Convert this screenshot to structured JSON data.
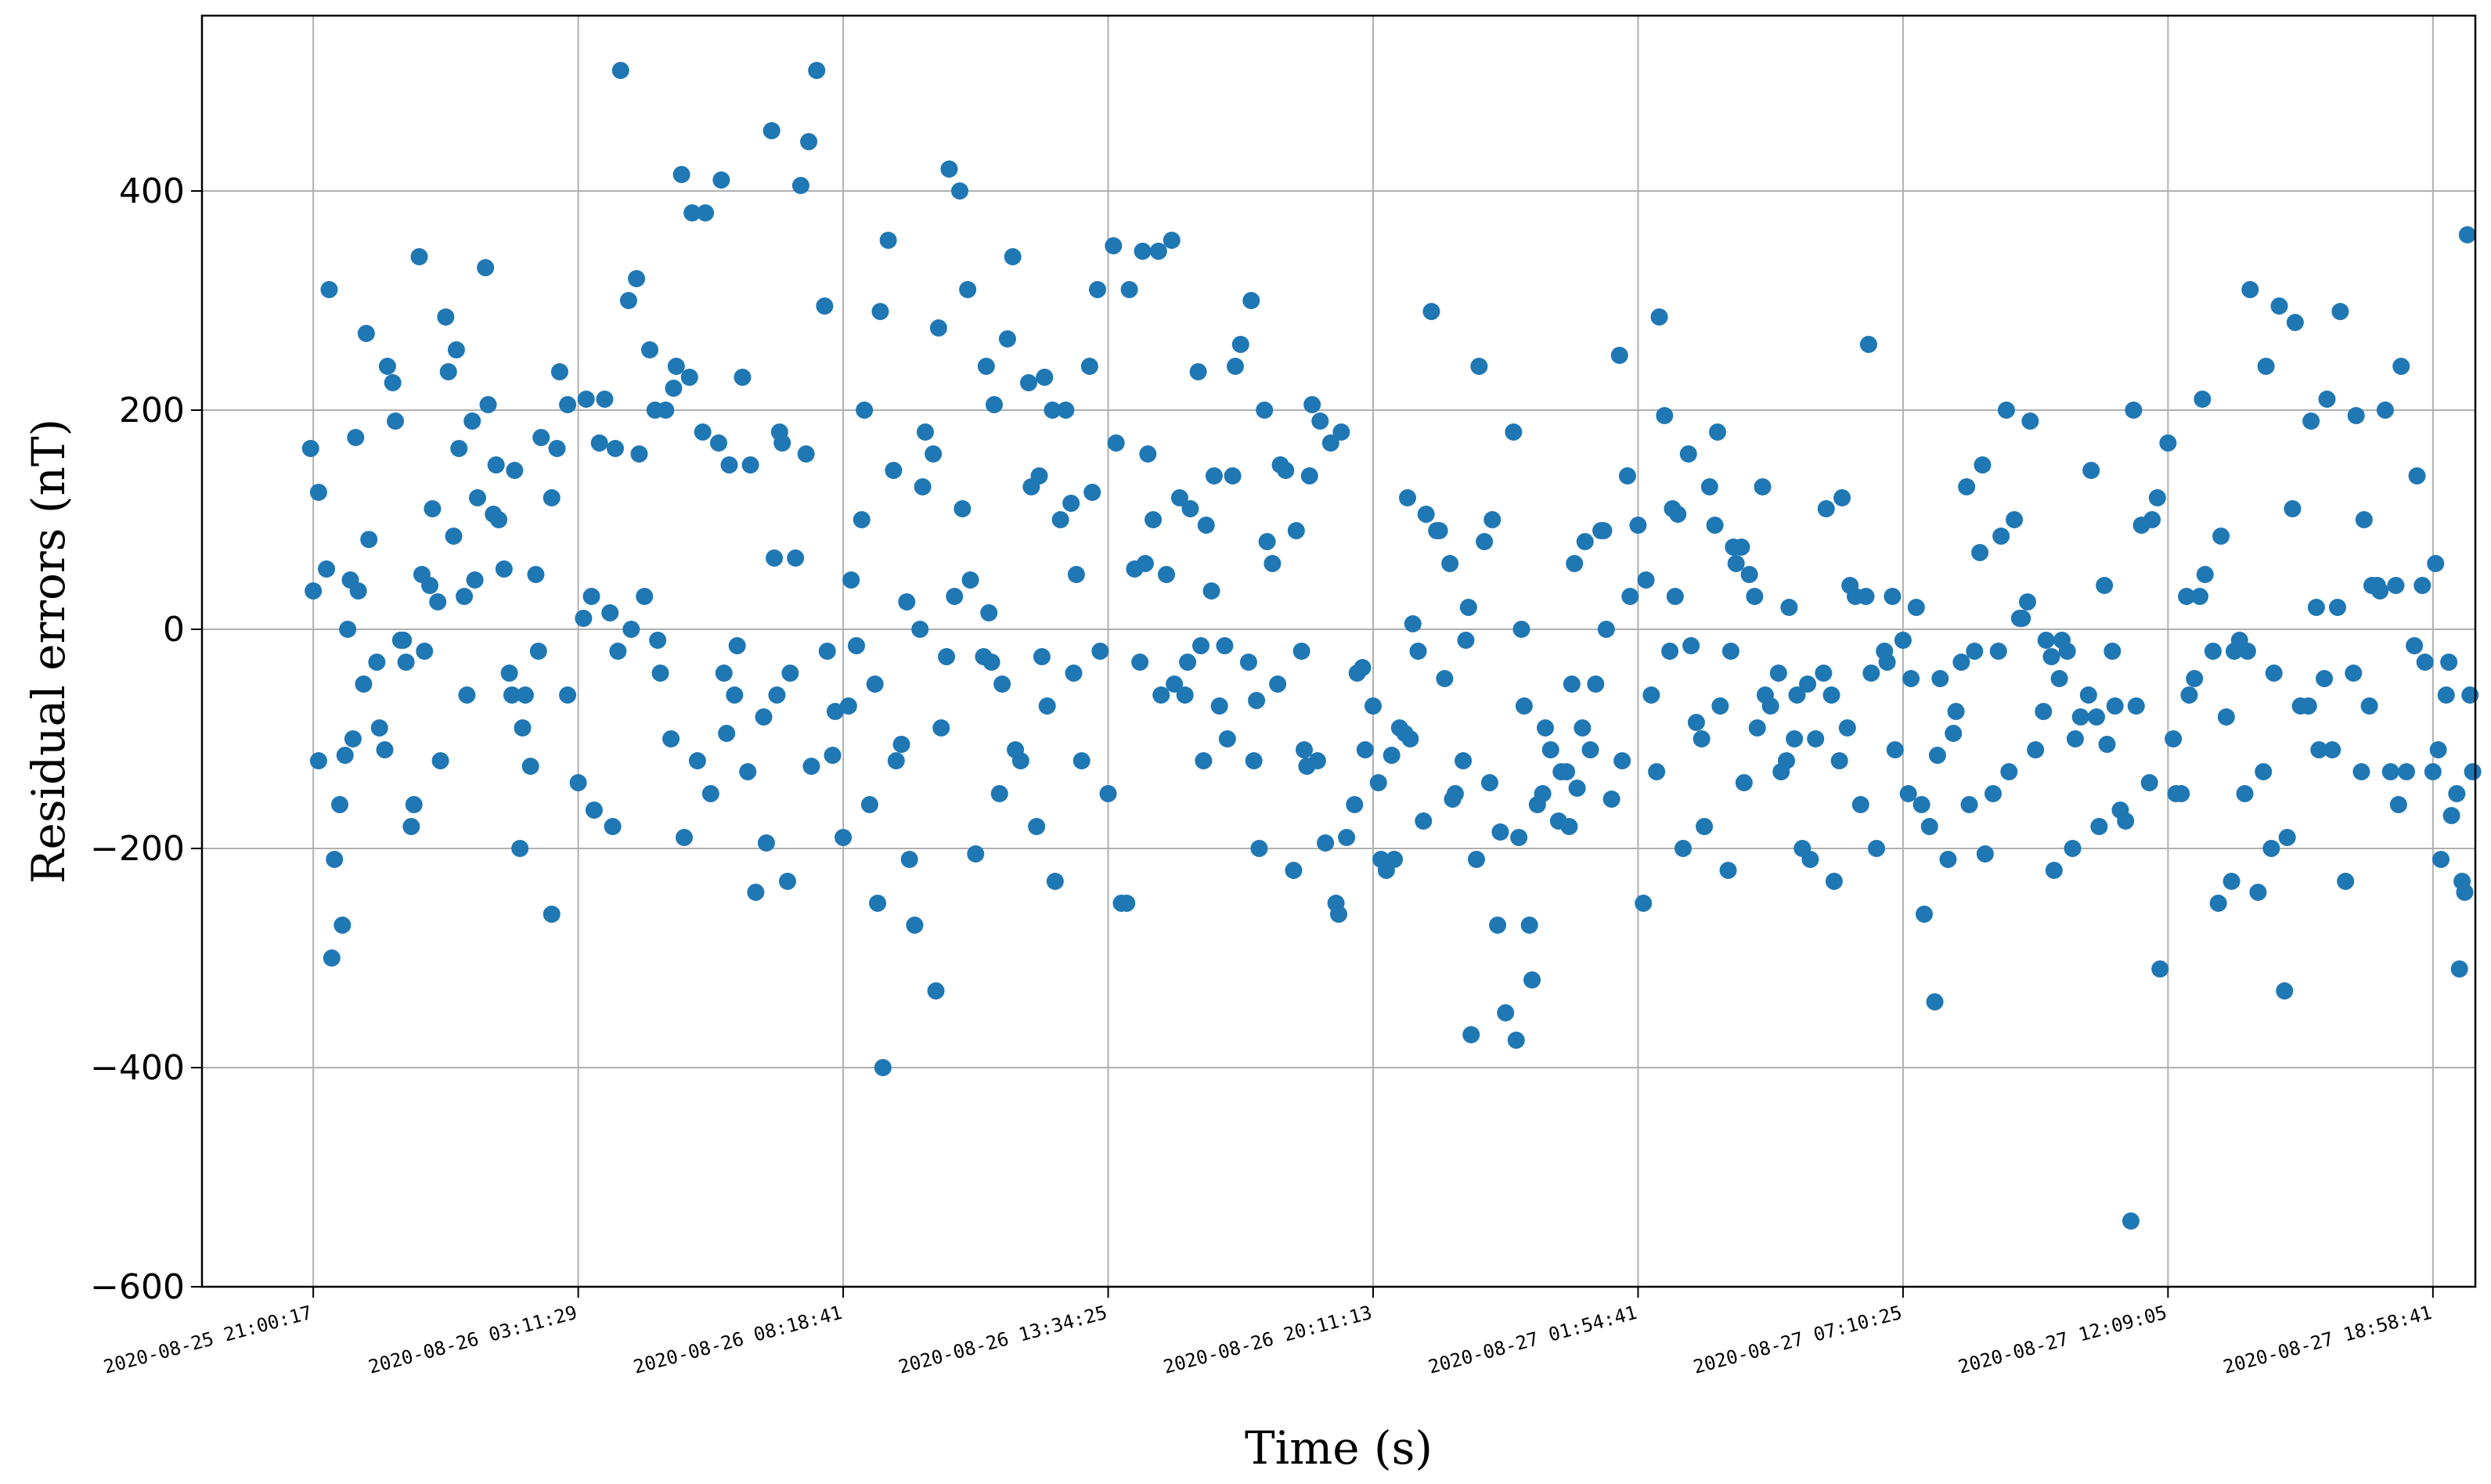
{
  "chart_data": {
    "type": "scatter",
    "title": "",
    "xlabel": "Time (s)",
    "ylabel": "Residual errors (nT)",
    "ylim": [
      -600,
      560
    ],
    "yticks": [
      -600,
      -400,
      -200,
      0,
      200,
      400
    ],
    "xticks": [
      "2020-08-25 21:00:17",
      "2020-08-26 03:11:29",
      "2020-08-26 08:18:41",
      "2020-08-26 13:34:25",
      "2020-08-26 20:11:13",
      "2020-08-27 01:54:41",
      "2020-08-27 07:10:25",
      "2020-08-27 12:09:05",
      "2020-08-27 18:58:41"
    ],
    "xlim_tick_index": [
      -0.42,
      8.16
    ],
    "grid": true,
    "legend": "none",
    "marker_color": "#1f77b4",
    "points_x": [
      -0.01,
      0.02,
      0.05,
      0.08,
      0.11,
      0.14,
      0.17,
      0.21,
      0.24,
      0.28,
      0.31,
      0.34,
      0.38,
      0.41,
      0.44,
      0.48,
      0.51,
      0.54,
      0.58,
      0.62,
      0.65,
      0.68,
      0.72,
      0.75,
      0.78,
      0.82,
      0.86,
      0.9,
      0.93,
      0.96,
      0.02,
      0.06,
      0.1,
      0.13,
      0.16,
      0.2,
      0.25,
      0.3,
      0.35,
      0.4,
      0.45,
      0.5,
      0.55,
      0.6,
      0.66,
      0.7,
      0.76,
      0.8,
      0.85,
      0.9,
      0.96,
      0.0,
      0.07,
      0.12,
      0.19,
      0.27,
      0.33,
      0.42,
      0.47,
      0.53,
      0.61,
      0.69,
      0.74,
      0.84,
      0.92,
      1.0,
      1.03,
      1.06,
      1.1,
      1.13,
      1.16,
      1.2,
      1.23,
      1.27,
      1.3,
      1.33,
      1.37,
      1.4,
      1.43,
      1.47,
      1.5,
      1.54,
      1.57,
      1.6,
      1.64,
      1.67,
      1.7,
      1.74,
      1.77,
      1.8,
      1.84,
      1.87,
      1.9,
      1.94,
      1.97,
      1.02,
      1.08,
      1.14,
      1.19,
      1.25,
      1.31,
      1.36,
      1.42,
      1.48,
      1.53,
      1.59,
      1.65,
      1.71,
      1.76,
      1.82,
      1.88,
      1.93,
      1.05,
      1.12,
      1.22,
      1.29,
      1.39,
      1.45,
      1.56,
      1.62,
      1.73,
      1.79,
      1.86,
      1.96,
      2.0,
      2.03,
      2.07,
      2.1,
      2.13,
      2.17,
      2.2,
      2.24,
      2.27,
      2.3,
      2.34,
      2.37,
      2.4,
      2.44,
      2.47,
      2.5,
      2.54,
      2.57,
      2.6,
      2.64,
      2.67,
      2.7,
      2.74,
      2.77,
      2.8,
      2.84,
      2.87,
      2.9,
      2.94,
      2.97,
      2.02,
      2.08,
      2.14,
      2.19,
      2.25,
      2.31,
      2.36,
      2.42,
      2.48,
      2.53,
      2.59,
      2.65,
      2.71,
      2.76,
      2.82,
      2.88,
      2.93,
      2.05,
      2.12,
      2.22,
      2.29,
      2.39,
      2.45,
      2.56,
      2.62,
      2.73,
      2.79,
      2.86,
      2.96,
      3.0,
      3.03,
      3.07,
      3.1,
      3.13,
      3.17,
      3.2,
      3.24,
      3.27,
      3.3,
      3.34,
      3.37,
      3.4,
      3.44,
      3.47,
      3.5,
      3.54,
      3.57,
      3.6,
      3.64,
      3.67,
      3.7,
      3.74,
      3.77,
      3.8,
      3.84,
      3.87,
      3.9,
      3.94,
      3.97,
      3.02,
      3.08,
      3.14,
      3.19,
      3.25,
      3.31,
      3.36,
      3.42,
      3.48,
      3.53,
      3.59,
      3.65,
      3.71,
      3.76,
      3.82,
      3.88,
      3.93,
      3.05,
      3.12,
      3.22,
      3.29,
      3.39,
      3.45,
      3.56,
      3.62,
      3.73,
      3.79,
      3.86,
      3.96,
      4.0,
      4.03,
      4.07,
      4.1,
      4.13,
      4.17,
      4.2,
      4.24,
      4.27,
      4.3,
      4.34,
      4.37,
      4.4,
      4.44,
      4.47,
      4.5,
      4.54,
      4.57,
      4.6,
      4.64,
      4.67,
      4.7,
      4.74,
      4.77,
      4.8,
      4.84,
      4.87,
      4.9,
      4.94,
      4.97,
      4.02,
      4.08,
      4.14,
      4.19,
      4.25,
      4.31,
      4.36,
      4.42,
      4.48,
      4.53,
      4.59,
      4.65,
      4.71,
      4.76,
      4.82,
      4.88,
      4.93,
      4.05,
      4.12,
      4.22,
      4.29,
      4.39,
      4.45,
      4.56,
      4.62,
      4.73,
      4.79,
      4.86,
      4.96,
      5.0,
      5.03,
      5.07,
      5.1,
      5.13,
      5.17,
      5.2,
      5.24,
      5.27,
      5.3,
      5.34,
      5.37,
      5.4,
      5.44,
      5.47,
      5.5,
      5.54,
      5.57,
      5.6,
      5.64,
      5.67,
      5.7,
      5.74,
      5.77,
      5.8,
      5.84,
      5.87,
      5.9,
      5.94,
      5.97,
      5.02,
      5.08,
      5.14,
      5.19,
      5.25,
      5.31,
      5.36,
      5.42,
      5.48,
      5.53,
      5.59,
      5.65,
      5.71,
      5.76,
      5.82,
      5.88,
      5.93,
      5.05,
      5.12,
      5.22,
      5.29,
      5.39,
      5.45,
      5.56,
      5.62,
      5.73,
      5.79,
      5.86,
      5.96,
      6.0,
      6.03,
      6.07,
      6.1,
      6.13,
      6.17,
      6.2,
      6.24,
      6.27,
      6.3,
      6.34,
      6.37,
      6.4,
      6.44,
      6.47,
      6.5,
      6.54,
      6.57,
      6.6,
      6.64,
      6.67,
      6.7,
      6.74,
      6.77,
      6.8,
      6.84,
      6.87,
      6.9,
      6.94,
      6.97,
      6.02,
      6.08,
      6.14,
      6.19,
      6.25,
      6.31,
      6.36,
      6.42,
      6.48,
      6.53,
      6.59,
      6.65,
      6.71,
      6.76,
      6.82,
      6.88,
      6.93,
      6.05,
      6.12,
      6.22,
      6.29,
      6.39,
      6.45,
      6.56,
      6.62,
      6.73,
      6.79,
      6.86,
      6.96,
      7.0,
      7.03,
      7.07,
      7.1,
      7.13,
      7.17,
      7.2,
      7.24,
      7.27,
      7.3,
      7.34,
      7.37,
      7.4,
      7.44,
      7.47,
      7.5,
      7.54,
      7.57,
      7.6,
      7.64,
      7.67,
      7.7,
      7.74,
      7.77,
      7.8,
      7.84,
      7.87,
      7.9,
      7.94,
      7.97,
      7.02,
      7.08,
      7.14,
      7.19,
      7.25,
      7.31,
      7.36,
      7.42,
      7.48,
      7.53,
      7.59,
      7.65,
      7.71,
      7.76,
      7.82,
      7.88,
      7.93,
      7.05,
      7.12,
      7.22,
      7.29,
      7.39,
      7.45,
      7.56,
      7.62,
      7.73,
      7.79,
      7.86,
      7.96,
      8.0,
      8.03,
      8.06,
      8.09,
      8.12,
      8.15,
      8.02,
      8.07,
      8.11,
      8.14,
      8.01,
      8.05,
      8.1,
      8.13,
      0.15,
      0.37,
      0.57,
      0.79,
      1.15,
      1.35,
      1.55,
      1.75,
      2.15,
      2.35,
      2.55,
      2.75,
      3.15,
      3.35,
      3.55,
      3.75,
      4.15,
      4.35,
      4.55,
      4.75,
      5.15,
      5.35,
      5.55,
      5.75,
      6.15,
      6.35,
      6.55,
      6.75,
      7.15,
      7.35,
      7.55,
      7.75,
      8.04,
      8.08
    ],
    "points_y": [
      165,
      -120,
      55,
      -210,
      -270,
      45,
      35,
      82,
      -30,
      240,
      190,
      -10,
      -160,
      50,
      40,
      -120,
      235,
      255,
      -60,
      120,
      330,
      105,
      55,
      -60,
      -200,
      -125,
      175,
      120,
      235,
      -60,
      125,
      310,
      -160,
      0,
      175,
      270,
      -90,
      225,
      -30,
      340,
      110,
      285,
      165,
      190,
      205,
      100,
      145,
      -60,
      -20,
      -260,
      205,
      35,
      -300,
      -115,
      -50,
      -110,
      -10,
      -20,
      25,
      85,
      45,
      150,
      -40,
      50,
      165,
      -140,
      210,
      -165,
      210,
      -180,
      510,
      0,
      160,
      255,
      -10,
      200,
      240,
      -190,
      380,
      180,
      -150,
      410,
      150,
      -15,
      -130,
      -240,
      -80,
      65,
      170,
      -40,
      405,
      445,
      510,
      -20,
      -75,
      10,
      170,
      165,
      300,
      30,
      -40,
      220,
      230,
      380,
      170,
      -60,
      150,
      -195,
      180,
      65,
      -125,
      295,
      30,
      15,
      320,
      200,
      415,
      -120,
      -95,
      230,
      455,
      -230,
      160,
      -115,
      -190,
      45,
      100,
      -160,
      -250,
      355,
      -120,
      25,
      -270,
      130,
      160,
      -90,
      420,
      400,
      310,
      -205,
      240,
      205,
      -50,
      340,
      -120,
      225,
      140,
      -70,
      -230,
      200,
      -40,
      -120,
      125,
      -20,
      -70,
      200,
      290,
      145,
      -210,
      180,
      275,
      30,
      45,
      -25,
      -150,
      -110,
      130,
      230,
      100,
      50,
      240,
      -15,
      -50,
      -105,
      0,
      -25,
      110,
      -30,
      265,
      -180,
      200,
      115,
      310,
      -150,
      170,
      -250,
      55,
      345,
      100,
      -60,
      355,
      120,
      -30,
      235,
      95,
      140,
      -15,
      140,
      260,
      300,
      -200,
      80,
      -50,
      145,
      -220,
      -110,
      205,
      190,
      170,
      -260,
      -190,
      -40,
      -110,
      350,
      310,
      60,
      345,
      -50,
      110,
      -120,
      -70,
      240,
      -30,
      200,
      150,
      90,
      140,
      -195,
      180,
      -160,
      -250,
      -30,
      50,
      -60,
      35,
      -100,
      -65,
      60,
      -20,
      -120,
      -250,
      -35,
      -70,
      -210,
      -115,
      -90,
      120,
      -20,
      105,
      90,
      -45,
      -155,
      -120,
      -370,
      240,
      -140,
      -270,
      -350,
      -375,
      -70,
      -320,
      -150,
      -110,
      -175,
      -180,
      -145,
      80,
      -50,
      90,
      -155,
      -120,
      30,
      -140,
      -210,
      -100,
      -175,
      90,
      -150,
      20,
      80,
      -185,
      180,
      -270,
      -90,
      -130,
      60,
      -110,
      0,
      250,
      -220,
      -95,
      290,
      60,
      -210,
      100,
      0,
      -160,
      -130,
      -90,
      90,
      140,
      95,
      45,
      -130,
      195,
      110,
      -200,
      -15,
      -100,
      130,
      180,
      -220,
      60,
      -140,
      30,
      130,
      -70,
      -130,
      20,
      -60,
      -50,
      -100,
      -40,
      -230,
      120,
      40,
      -160,
      260,
      -200,
      -30,
      -110,
      -250,
      285,
      30,
      160,
      -180,
      -70,
      75,
      50,
      -60,
      -40,
      -100,
      -210,
      110,
      -120,
      30,
      -40,
      -20,
      -60,
      -20,
      -85,
      95,
      75,
      -90,
      -120,
      -200,
      -60,
      -90,
      30,
      30,
      -10,
      -45,
      -160,
      -180,
      -115,
      -210,
      -75,
      130,
      -20,
      150,
      -150,
      85,
      -130,
      10,
      25,
      -110,
      -10,
      -220,
      -10,
      -200,
      -80,
      -60,
      -180,
      -105,
      -70,
      -175,
      200,
      95,
      100,
      -310,
      -150,
      -260,
      -45,
      -95,
      -160,
      -205,
      -20,
      100,
      190,
      -75,
      -45,
      -100,
      145,
      40,
      -165,
      -70,
      -140,
      20,
      -340,
      -30,
      70,
      200,
      10,
      -25,
      -20,
      -80,
      -20,
      -540,
      120,
      170,
      -150,
      30,
      -45,
      210,
      -20,
      85,
      -230,
      -10,
      -20,
      -240,
      240,
      -40,
      -330,
      110,
      -70,
      190,
      -110,
      210,
      20,
      -230,
      -40,
      100,
      40,
      35,
      -130,
      -160,
      -130,
      140,
      -30,
      -100,
      -60,
      50,
      -250,
      -20,
      310,
      -130,
      295,
      280,
      -70,
      -45,
      290,
      195,
      -70,
      200,
      240,
      -15,
      -150,
      30,
      -80,
      -150,
      -200,
      -190,
      20,
      -110,
      -130,
      40,
      40,
      40,
      -130,
      -210,
      -30,
      -150,
      -240,
      -130,
      -110,
      -170,
      -230,
      -60,
      60,
      -60,
      -310,
      360,
      -100,
      -180,
      30,
      -90,
      -20,
      -100,
      -40,
      -60,
      -400,
      -330,
      15,
      -25,
      160,
      -15,
      -120,
      -125,
      5,
      -10,
      -190,
      -50,
      105,
      -20
    ]
  }
}
